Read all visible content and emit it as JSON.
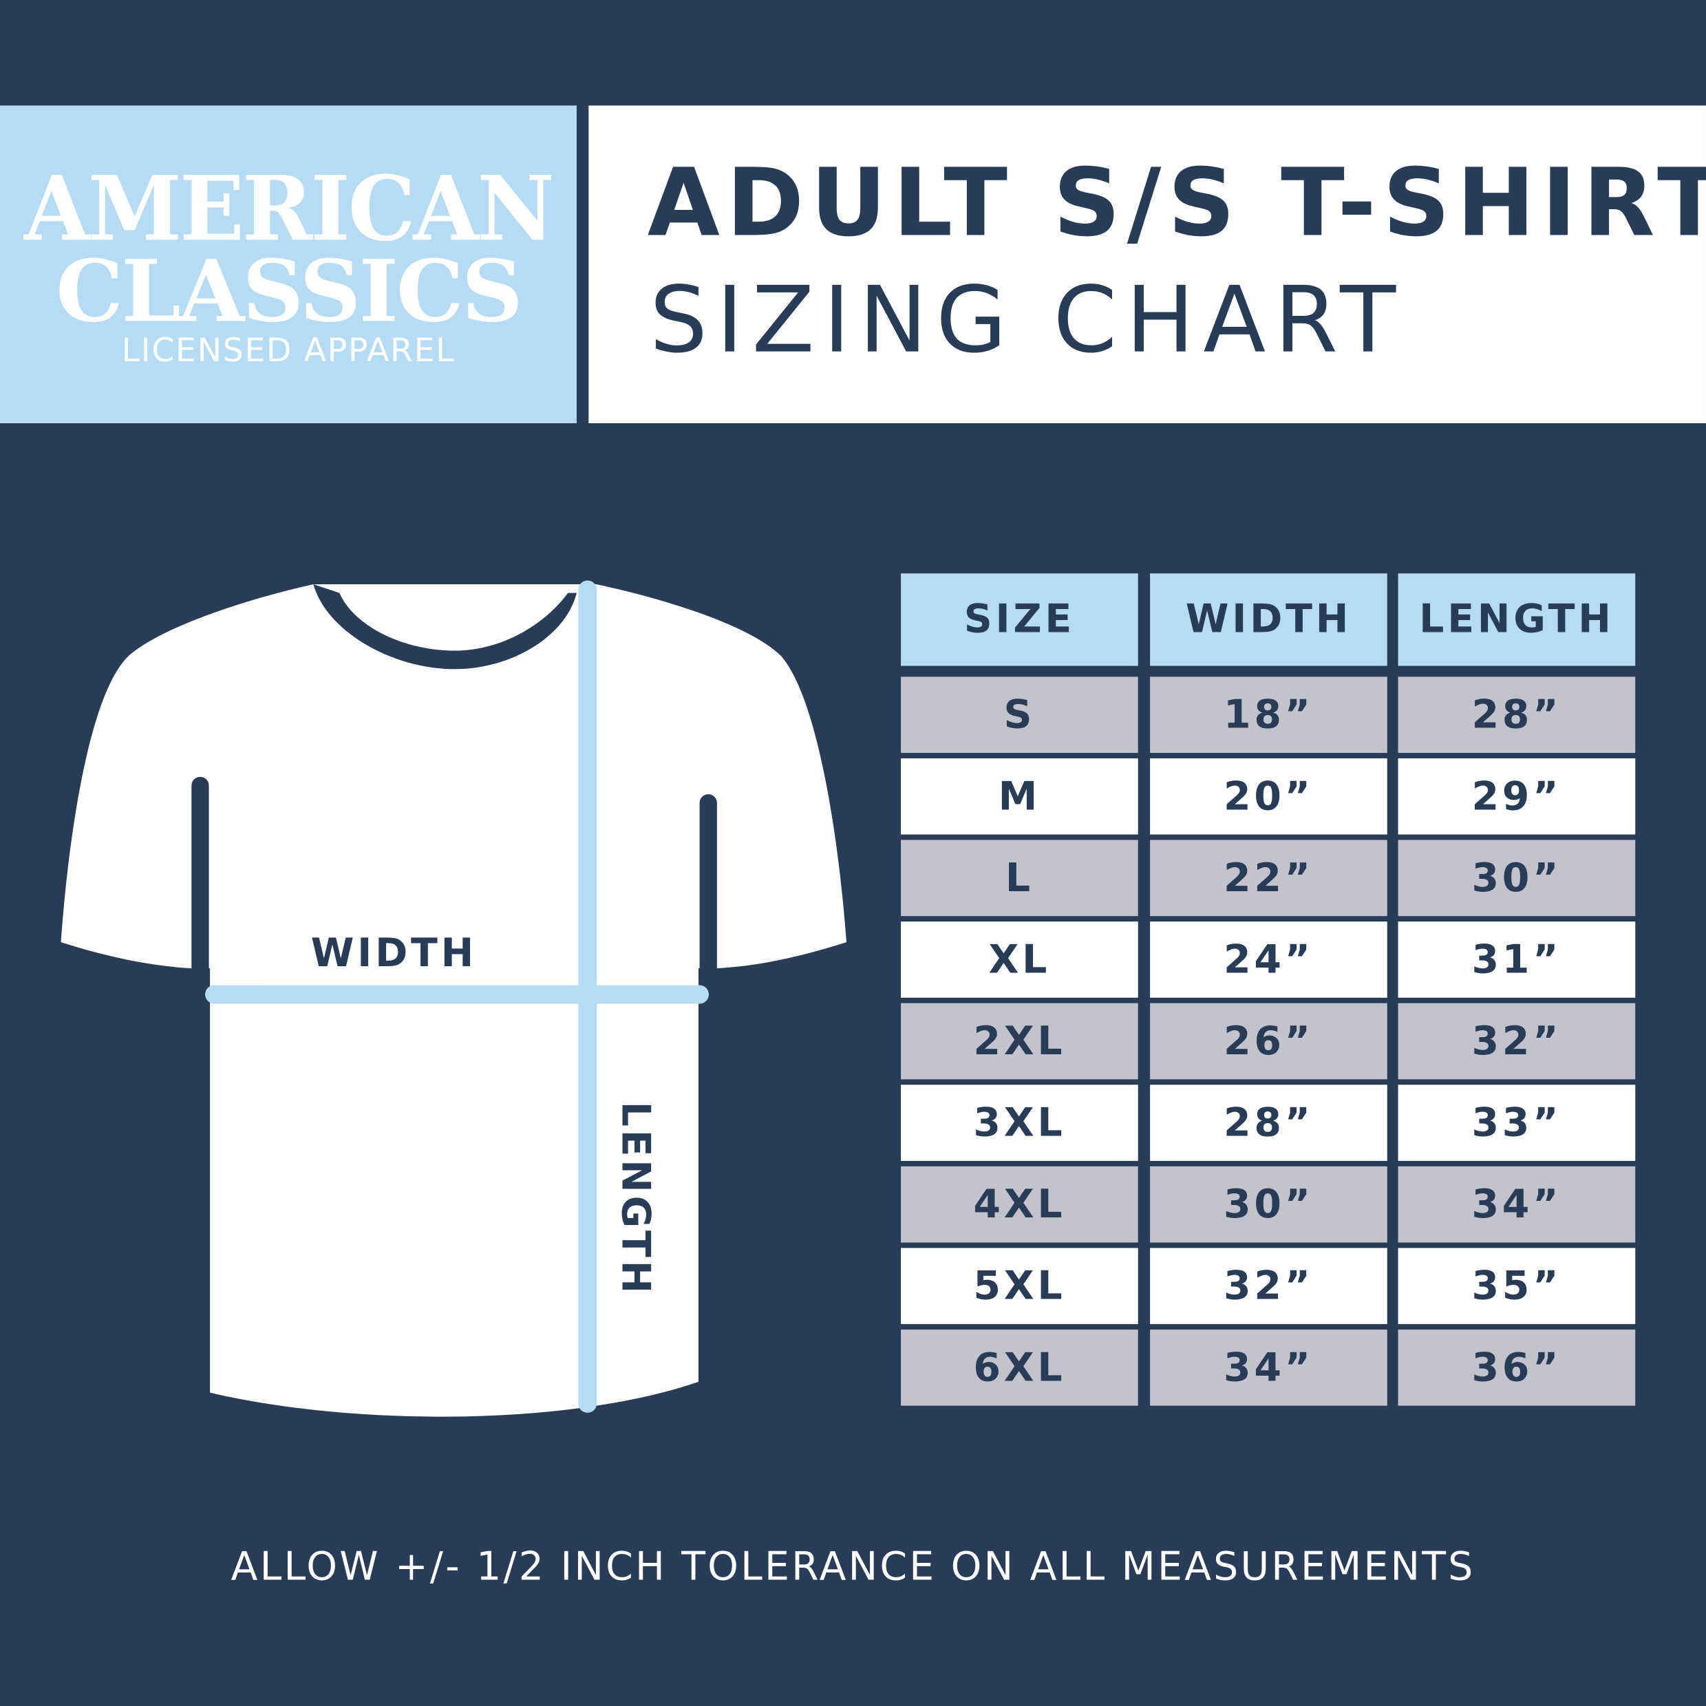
{
  "logo": {
    "line1": "AMERICAN",
    "line2": "CLASSICS",
    "line3": "LICENSED APPAREL"
  },
  "title": {
    "line1": "ADULT S/S T-SHIRT",
    "line2": "SIZING CHART"
  },
  "diagram": {
    "width_label": "WIDTH",
    "length_label": "LENGTH"
  },
  "table": {
    "headers": [
      "SIZE",
      "WIDTH",
      "LENGTH"
    ],
    "rows": [
      [
        "S",
        "18”",
        "28”"
      ],
      [
        "M",
        "20”",
        "29”"
      ],
      [
        "L",
        "22”",
        "30”"
      ],
      [
        "XL",
        "24”",
        "31”"
      ],
      [
        "2XL",
        "26”",
        "32”"
      ],
      [
        "3XL",
        "28”",
        "33”"
      ],
      [
        "4XL",
        "30”",
        "34”"
      ],
      [
        "5XL",
        "32”",
        "35”"
      ],
      [
        "6XL",
        "34”",
        "36”"
      ]
    ]
  },
  "footer": "ALLOW +/- 1/2 INCH TOLERANCE ON ALL MEASUREMENTS",
  "colors": {
    "navy": "#283b57",
    "light_blue": "#b5dcf4",
    "gray_row": "#c3c3ce",
    "white": "#ffffff"
  }
}
